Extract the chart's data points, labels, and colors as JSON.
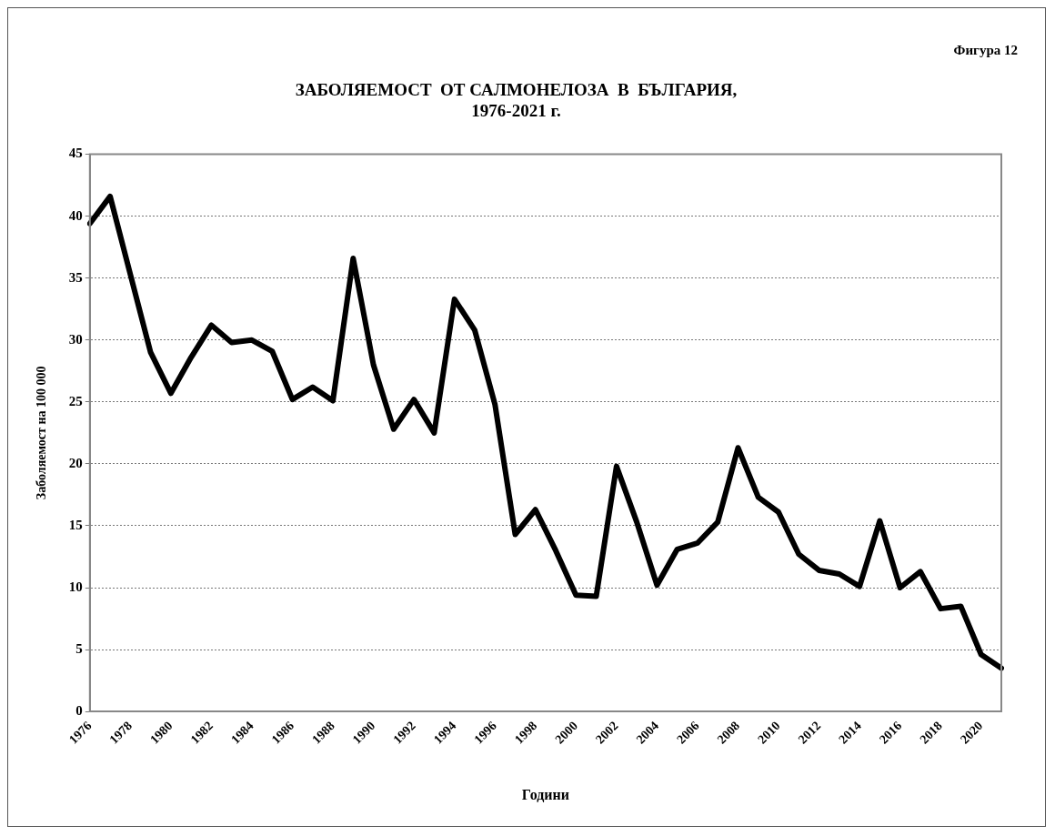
{
  "chart_data": {
    "type": "line",
    "title": "ЗАБОЛЯЕМОСТ  ОТ САЛМОНЕЛОЗА  В  БЪЛГАРИЯ,\n1976-2021 г.",
    "xlabel": "Години",
    "ylabel": "Заболяемост на 100 000",
    "annotations": [
      "Фигура 12"
    ],
    "categories": [
      "1976",
      null,
      "1978",
      null,
      "1980",
      null,
      "1982",
      null,
      "1984",
      null,
      "1986",
      null,
      "1988",
      null,
      "1990",
      null,
      "1992",
      null,
      "1994",
      null,
      "1996",
      null,
      "1998",
      null,
      "2000",
      null,
      "2002",
      null,
      "2004",
      null,
      "2006",
      null,
      "2008",
      null,
      "2010",
      null,
      "2012",
      null,
      "2014",
      null,
      "2016",
      null,
      "2018",
      null,
      "2020",
      null
    ],
    "series": [
      {
        "color": "#000000",
        "values": [
          39.4,
          41.6,
          35.3,
          29.0,
          25.7,
          28.6,
          31.2,
          29.8,
          30.0,
          29.1,
          25.2,
          26.2,
          25.1,
          36.6,
          28.0,
          22.8,
          25.2,
          22.5,
          33.3,
          30.8,
          24.8,
          14.3,
          16.3,
          13.0,
          9.4,
          9.3,
          19.8,
          15.3,
          10.2,
          13.1,
          13.6,
          15.3,
          21.3,
          17.3,
          16.1,
          12.7,
          11.4,
          11.1,
          10.1,
          15.4,
          10.0,
          11.3,
          8.3,
          8.5,
          4.6,
          3.5
        ]
      }
    ],
    "ylim": [
      0,
      45
    ],
    "yticks": [
      0,
      5,
      10,
      15,
      20,
      25,
      30,
      35,
      40,
      45
    ],
    "grid": "y",
    "legend": false,
    "marker": "none",
    "line_style": "solid"
  }
}
